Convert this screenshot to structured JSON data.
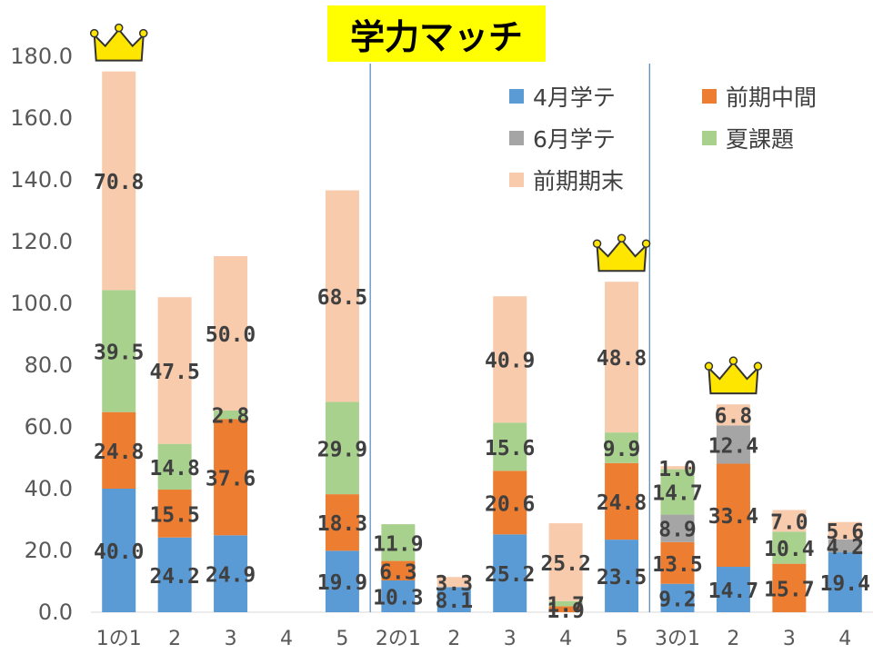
{
  "title": "学力マッチ",
  "colors": {
    "s1": "#5b9bd5",
    "s2": "#ed7d31",
    "s3": "#a5a5a5",
    "s4": "#a9d18e",
    "s5": "#f8cbad",
    "title_bg": "#ffff00",
    "divider": "#4a86c5",
    "crown_fill": "#ffe600",
    "crown_stroke": "#333333"
  },
  "chart_data": {
    "type": "bar",
    "stacked": true,
    "ylim": [
      0,
      180
    ],
    "yticks": [
      "0.0",
      "20.0",
      "40.0",
      "60.0",
      "80.0",
      "100.0",
      "120.0",
      "140.0",
      "160.0",
      "180.0"
    ],
    "categories": [
      "1の1",
      "2",
      "3",
      "4",
      "5",
      "2の1",
      "2",
      "3",
      "4",
      "5",
      "3の1",
      "2",
      "3",
      "4"
    ],
    "series": [
      {
        "name": "4月学テ",
        "values": [
          40.0,
          24.2,
          24.9,
          null,
          19.9,
          10.3,
          8.1,
          25.2,
          null,
          23.5,
          9.2,
          14.7,
          null,
          19.4
        ]
      },
      {
        "name": "前期中間",
        "values": [
          24.8,
          15.5,
          37.6,
          null,
          18.3,
          6.3,
          null,
          20.6,
          1.9,
          24.8,
          13.5,
          33.4,
          15.7,
          null
        ]
      },
      {
        "name": "6月学テ",
        "values": [
          null,
          null,
          null,
          null,
          null,
          null,
          null,
          null,
          null,
          null,
          8.9,
          12.4,
          null,
          4.2
        ]
      },
      {
        "name": "夏課題",
        "values": [
          39.5,
          14.8,
          2.8,
          null,
          29.9,
          11.9,
          null,
          15.6,
          1.7,
          9.9,
          14.7,
          null,
          10.4,
          null
        ]
      },
      {
        "name": "前期期末",
        "values": [
          70.8,
          47.5,
          50.0,
          null,
          68.5,
          null,
          3.3,
          40.9,
          25.2,
          48.8,
          1.0,
          6.8,
          7.0,
          5.6
        ]
      }
    ],
    "dividers_after_category": [
      4,
      9
    ],
    "crowned_categories": [
      0,
      9,
      11
    ],
    "legend_position": "top-right",
    "grid": false
  }
}
